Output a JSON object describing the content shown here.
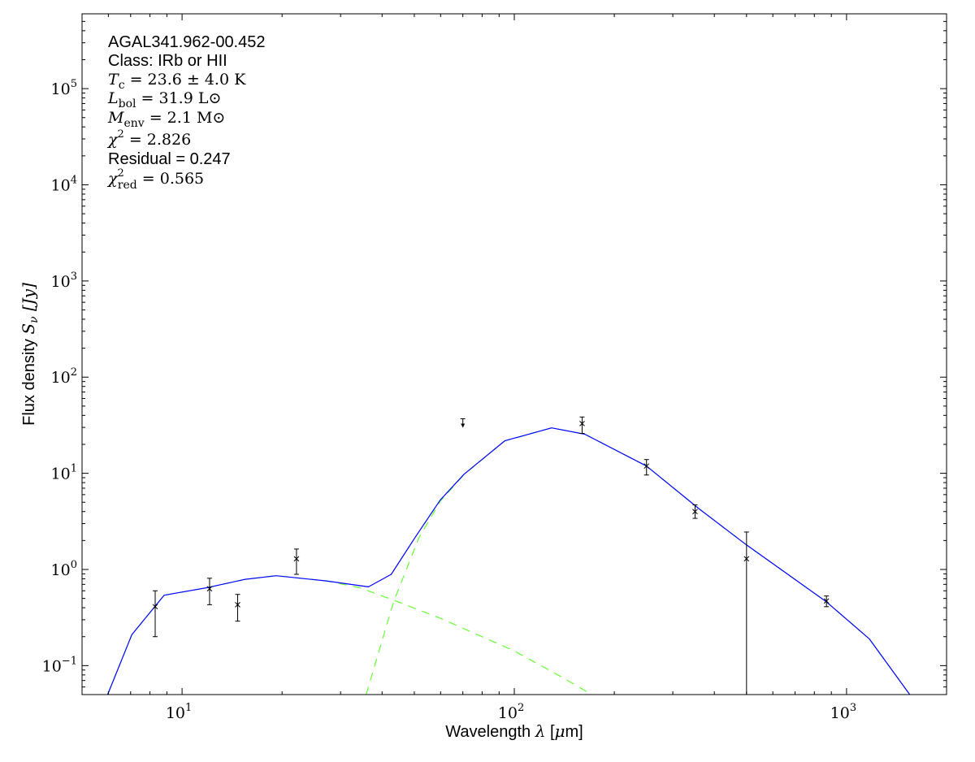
{
  "chart_data": {
    "type": "scatter",
    "xlabel": "Wavelength λ [μm]",
    "ylabel": "Flux density S_ν [Jy]",
    "ylabel_parts": {
      "text": "Flux density ",
      "sym": "S",
      "sub": "ν",
      "unit": " [Jy]"
    },
    "xlabel_parts": {
      "text": "Wavelength ",
      "sym": "λ",
      "unit_open": " [",
      "mu": "μ",
      "unit_close": "m]"
    },
    "x_scale": "log",
    "y_scale": "log",
    "xlim": [
      5,
      2000
    ],
    "ylim": [
      0.05,
      600000
    ],
    "x_ticks": [
      {
        "base": "10",
        "exp": "1",
        "value": 10
      },
      {
        "base": "10",
        "exp": "2",
        "value": 100
      },
      {
        "base": "10",
        "exp": "3",
        "value": 1000
      }
    ],
    "y_ticks": [
      {
        "base": "10",
        "exp": "−1",
        "value": 0.1
      },
      {
        "base": "10",
        "exp": "0",
        "value": 1
      },
      {
        "base": "10",
        "exp": "1",
        "value": 10
      },
      {
        "base": "10",
        "exp": "2",
        "value": 100
      },
      {
        "base": "10",
        "exp": "3",
        "value": 1000
      },
      {
        "base": "10",
        "exp": "4",
        "value": 10000
      },
      {
        "base": "10",
        "exp": "5",
        "value": 100000
      }
    ],
    "grid": false,
    "points": [
      {
        "x": 8.3,
        "y": 0.41,
        "err_lo": 0.2,
        "err_hi": 0.6
      },
      {
        "x": 12.1,
        "y": 0.63,
        "err_lo": 0.43,
        "err_hi": 0.81
      },
      {
        "x": 14.7,
        "y": 0.43,
        "err_lo": 0.29,
        "err_hi": 0.55
      },
      {
        "x": 22.1,
        "y": 1.29,
        "err_lo": 0.89,
        "err_hi": 1.63
      },
      {
        "x": 160,
        "y": 32.9,
        "err_lo": 26,
        "err_hi": 38.5
      },
      {
        "x": 250,
        "y": 11.9,
        "err_lo": 9.6,
        "err_hi": 13.9
      },
      {
        "x": 350,
        "y": 4.0,
        "err_lo": 3.4,
        "err_hi": 4.7
      },
      {
        "x": 500,
        "y": 1.29,
        "err_lo": 0.01,
        "err_hi": 2.45
      },
      {
        "x": 870,
        "y": 0.47,
        "err_lo": 0.41,
        "err_hi": 0.53
      }
    ],
    "upper_limits": [
      {
        "x": 70,
        "y": 33.5
      }
    ],
    "series": [
      {
        "style": "total-fit",
        "color": "#0000ff",
        "dash": false,
        "x": [
          5.97,
          7.06,
          8.83,
          12,
          15.5,
          19.2,
          27.2,
          36.4,
          42.6,
          50.4,
          59.8,
          70.6,
          93.6,
          129.5,
          163,
          250,
          359,
          500,
          870,
          1171,
          1550
        ],
        "y": [
          0.05,
          0.21,
          0.54,
          0.65,
          0.79,
          0.86,
          0.76,
          0.66,
          0.89,
          2.18,
          5.25,
          9.8,
          21.8,
          29.7,
          25.5,
          11.9,
          4.3,
          1.8,
          0.46,
          0.19,
          0.05
        ]
      },
      {
        "style": "warm-component",
        "color": "#66ff33",
        "dash": true,
        "x": [
          5.97,
          7.06,
          8.83,
          12,
          15.5,
          19.2,
          27.2,
          34,
          43.3,
          60,
          100,
          140,
          171
        ],
        "y": [
          0.05,
          0.21,
          0.54,
          0.65,
          0.79,
          0.86,
          0.76,
          0.65,
          0.48,
          0.31,
          0.142,
          0.075,
          0.05
        ]
      },
      {
        "style": "cold-component",
        "color": "#66ff33",
        "dash": true,
        "x": [
          35.8,
          43.3,
          51.5,
          59.8,
          70.6,
          93.6,
          129.5,
          163,
          250,
          359,
          500,
          870,
          1171,
          1550
        ],
        "y": [
          0.05,
          0.46,
          2.1,
          5.1,
          9.7,
          21.8,
          29.7,
          25.5,
          11.9,
          4.3,
          1.8,
          0.46,
          0.19,
          0.05
        ]
      }
    ],
    "annotations": [
      {
        "kind": "plain",
        "text": "AGAL341.962-00.452"
      },
      {
        "kind": "plain",
        "text": "Class: IRb or HII"
      },
      {
        "kind": "math",
        "sym": "T",
        "sub": "c",
        "sup": "",
        "rest": " = 23.6 ± 4.0 K"
      },
      {
        "kind": "math",
        "sym": "L",
        "sub": "bol",
        "sup": "",
        "rest": " = 31.9 L⊙"
      },
      {
        "kind": "math",
        "sym": "M",
        "sub": "env",
        "sup": "",
        "rest": " = 2.1 M⊙"
      },
      {
        "kind": "math",
        "sym": "χ",
        "sub": "",
        "sup": "2",
        "rest": " = 2.826"
      },
      {
        "kind": "plain",
        "text": "Residual = 0.247"
      },
      {
        "kind": "math",
        "sym": "χ",
        "sub": "red",
        "sup": "2",
        "rest": " = 0.565"
      }
    ]
  }
}
